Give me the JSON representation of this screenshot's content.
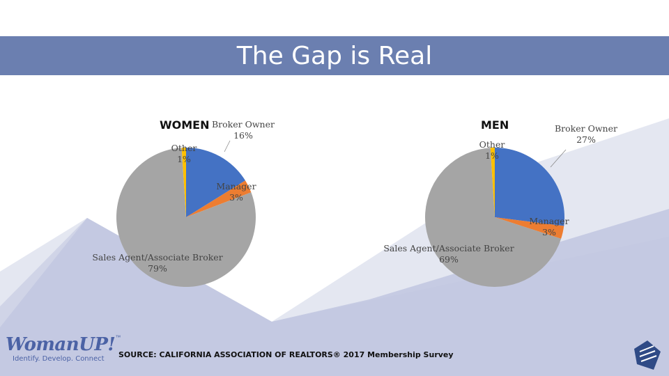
{
  "slide": {
    "title": "The Gap is Real"
  },
  "source": "SOURCE:  CALIFORNIA ASSOCIATION OF REALTORS® 2017 Membership Survey",
  "logo": {
    "name": "WomanUP!",
    "tm": "™",
    "tagline": "Identify. Develop. Connect"
  },
  "colors": {
    "broker_owner": "#4472c4",
    "manager": "#ed7d31",
    "sales_agent": "#a5a5a5",
    "other": "#ffc000",
    "title_bar": "#6b7fb0"
  },
  "chart_data": [
    {
      "type": "pie",
      "title": "WOMEN",
      "slices": [
        {
          "label": "Broker Owner",
          "value": 16,
          "display": "16%"
        },
        {
          "label": "Manager",
          "value": 3,
          "display": "3%"
        },
        {
          "label": "Sales Agent/Associate Broker",
          "value": 79,
          "display": "79%"
        },
        {
          "label": "Other",
          "value": 1,
          "display": "1%"
        }
      ]
    },
    {
      "type": "pie",
      "title": "MEN",
      "slices": [
        {
          "label": "Broker Owner",
          "value": 27,
          "display": "27%"
        },
        {
          "label": "Manager",
          "value": 3,
          "display": "3%"
        },
        {
          "label": "Sales Agent/Associate Broker",
          "value": 69,
          "display": "69%"
        },
        {
          "label": "Other",
          "value": 1,
          "display": "1%"
        }
      ]
    }
  ]
}
